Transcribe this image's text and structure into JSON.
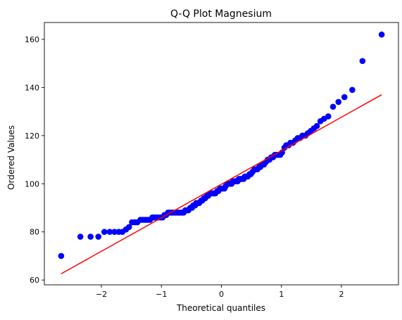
{
  "chart_data": {
    "type": "scatter",
    "title": "Q-Q Plot Magnesium",
    "xlabel": "Theoretical quantiles",
    "ylabel": "Ordered Values",
    "xlim": [
      -2.95,
      2.95
    ],
    "ylim": [
      58,
      167
    ],
    "xticks": [
      -2,
      -1,
      0,
      1,
      2
    ],
    "xtick_labels": [
      "−2",
      "−1",
      "0",
      "1",
      "2"
    ],
    "yticks": [
      60,
      80,
      100,
      120,
      140,
      160
    ],
    "ytick_labels": [
      "60",
      "80",
      "100",
      "120",
      "140",
      "160"
    ],
    "grid": false,
    "legend": "none",
    "colors": {
      "points": "#0000ff",
      "fit_line": "#ff0000"
    },
    "series": [
      {
        "type": "scatter",
        "points": [
          [
            -2.67,
            70
          ],
          [
            -2.35,
            78
          ],
          [
            -2.18,
            78
          ],
          [
            -2.05,
            78
          ],
          [
            -1.95,
            80
          ],
          [
            -1.86,
            80
          ],
          [
            -1.78,
            80
          ],
          [
            -1.71,
            80
          ],
          [
            -1.65,
            80
          ],
          [
            -1.59,
            81
          ],
          [
            -1.54,
            82
          ],
          [
            -1.49,
            84
          ],
          [
            -1.44,
            84
          ],
          [
            -1.4,
            84
          ],
          [
            -1.35,
            85
          ],
          [
            -1.31,
            85
          ],
          [
            -1.27,
            85
          ],
          [
            -1.23,
            85
          ],
          [
            -1.19,
            85
          ],
          [
            -1.15,
            86
          ],
          [
            -1.12,
            86
          ],
          [
            -1.08,
            86
          ],
          [
            -1.05,
            86
          ],
          [
            -1.01,
            86
          ],
          [
            -0.98,
            86
          ],
          [
            -0.95,
            87
          ],
          [
            -0.92,
            87
          ],
          [
            -0.89,
            88
          ],
          [
            -0.86,
            88
          ],
          [
            -0.83,
            88
          ],
          [
            -0.8,
            88
          ],
          [
            -0.77,
            88
          ],
          [
            -0.74,
            88
          ],
          [
            -0.71,
            88
          ],
          [
            -0.68,
            88
          ],
          [
            -0.65,
            88
          ],
          [
            -0.63,
            88
          ],
          [
            -0.6,
            89
          ],
          [
            -0.57,
            89
          ],
          [
            -0.55,
            89
          ],
          [
            -0.52,
            90
          ],
          [
            -0.49,
            90
          ],
          [
            -0.47,
            91
          ],
          [
            -0.44,
            91
          ],
          [
            -0.42,
            92
          ],
          [
            -0.39,
            92
          ],
          [
            -0.37,
            92
          ],
          [
            -0.34,
            93
          ],
          [
            -0.32,
            93
          ],
          [
            -0.29,
            94
          ],
          [
            -0.27,
            94
          ],
          [
            -0.24,
            95
          ],
          [
            -0.22,
            95
          ],
          [
            -0.19,
            96
          ],
          [
            -0.17,
            96
          ],
          [
            -0.14,
            96
          ],
          [
            -0.12,
            96
          ],
          [
            -0.1,
            96
          ],
          [
            -0.07,
            97
          ],
          [
            -0.05,
            97
          ],
          [
            -0.02,
            98
          ],
          [
            0.0,
            98
          ],
          [
            0.02,
            98
          ],
          [
            0.05,
            98
          ],
          [
            0.07,
            99
          ],
          [
            0.1,
            100
          ],
          [
            0.12,
            100
          ],
          [
            0.14,
            100
          ],
          [
            0.17,
            100
          ],
          [
            0.19,
            101
          ],
          [
            0.22,
            101
          ],
          [
            0.24,
            101
          ],
          [
            0.27,
            101
          ],
          [
            0.29,
            102
          ],
          [
            0.32,
            102
          ],
          [
            0.34,
            102
          ],
          [
            0.37,
            102
          ],
          [
            0.39,
            103
          ],
          [
            0.42,
            103
          ],
          [
            0.44,
            103
          ],
          [
            0.47,
            104
          ],
          [
            0.49,
            104
          ],
          [
            0.52,
            105
          ],
          [
            0.55,
            106
          ],
          [
            0.57,
            106
          ],
          [
            0.6,
            106
          ],
          [
            0.63,
            107
          ],
          [
            0.65,
            107
          ],
          [
            0.68,
            108
          ],
          [
            0.71,
            108
          ],
          [
            0.74,
            109
          ],
          [
            0.77,
            110
          ],
          [
            0.8,
            110
          ],
          [
            0.83,
            111
          ],
          [
            0.86,
            111
          ],
          [
            0.89,
            112
          ],
          [
            0.92,
            112
          ],
          [
            0.95,
            112
          ],
          [
            0.98,
            112
          ],
          [
            1.01,
            113
          ],
          [
            1.05,
            115
          ],
          [
            1.08,
            116
          ],
          [
            1.12,
            116
          ],
          [
            1.15,
            117
          ],
          [
            1.19,
            117
          ],
          [
            1.23,
            118
          ],
          [
            1.27,
            119
          ],
          [
            1.31,
            119
          ],
          [
            1.35,
            120
          ],
          [
            1.4,
            120
          ],
          [
            1.44,
            121
          ],
          [
            1.49,
            122
          ],
          [
            1.54,
            123
          ],
          [
            1.59,
            124
          ],
          [
            1.65,
            126
          ],
          [
            1.71,
            127
          ],
          [
            1.78,
            128
          ],
          [
            1.86,
            132
          ],
          [
            1.95,
            134
          ],
          [
            2.05,
            136
          ],
          [
            2.18,
            139
          ],
          [
            2.35,
            151
          ],
          [
            2.67,
            162
          ]
        ]
      },
      {
        "type": "line",
        "points": [
          [
            -2.67,
            62.6
          ],
          [
            2.67,
            137.0
          ]
        ]
      }
    ]
  }
}
